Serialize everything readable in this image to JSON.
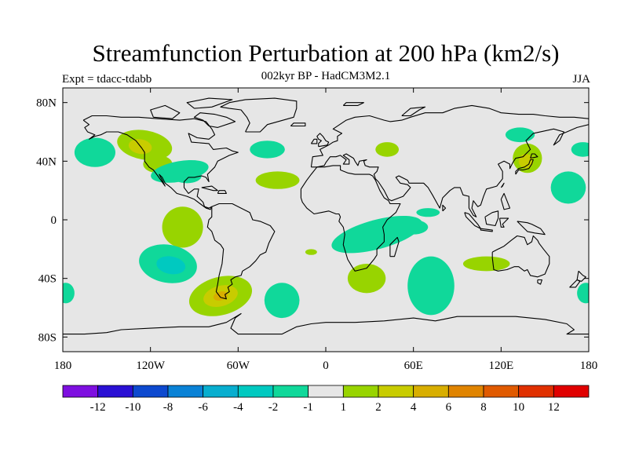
{
  "title": "Streamfunction Perturbation at 200 hPa (km2/s)",
  "subtitle": "002kyr BP - HadCM3M2.1",
  "left_label": "Expt = tdacc-tdabb",
  "right_label": "JJA",
  "map": {
    "lon_range": [
      -180,
      180
    ],
    "lat_range": [
      -90,
      90
    ],
    "lon_ticks": [
      {
        "value": -180,
        "label": "180"
      },
      {
        "value": -120,
        "label": "120W"
      },
      {
        "value": -60,
        "label": "60W"
      },
      {
        "value": 0,
        "label": "0"
      },
      {
        "value": 60,
        "label": "60E"
      },
      {
        "value": 120,
        "label": "120E"
      },
      {
        "value": 180,
        "label": "180"
      }
    ],
    "lat_ticks": [
      {
        "value": 80,
        "label": "80N"
      },
      {
        "value": 40,
        "label": "40N"
      },
      {
        "value": 0,
        "label": "0"
      },
      {
        "value": -40,
        "label": "40S"
      },
      {
        "value": -80,
        "label": "80S"
      }
    ],
    "background_color": "#e6e6e6",
    "land_outline_color": "#000000"
  },
  "colorbar": {
    "labels": [
      "-12",
      "-10",
      "-8",
      "-6",
      "-4",
      "-2",
      "-1",
      "1",
      "2",
      "4",
      "6",
      "8",
      "10",
      "12"
    ],
    "colors": [
      "#7e0fe0",
      "#2a10d4",
      "#0d49cf",
      "#0a82d6",
      "#08aecf",
      "#00c9c0",
      "#10d89a",
      "#e6e6e6",
      "#98d400",
      "#c8cc00",
      "#d8ae00",
      "#e08400",
      "#e05a00",
      "#e03000",
      "#e00000"
    ]
  }
}
